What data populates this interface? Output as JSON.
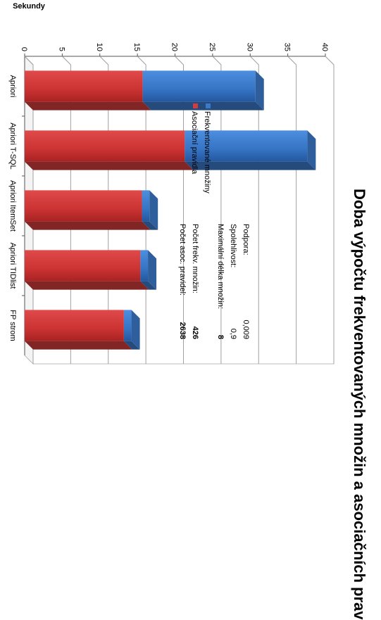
{
  "chart_data": {
    "type": "bar",
    "stacked": true,
    "orientation": "rotated-90-clockwise",
    "title": "Doba výpočtu frekventovaných množin a asociačních pravidel",
    "ylabel": "Sekundy",
    "ylim": [
      0,
      40
    ],
    "yticks": [
      "0",
      "5",
      "10",
      "15",
      "20",
      "25",
      "30",
      "35",
      "40"
    ],
    "grid": true,
    "legend_position": "top-right",
    "categories": [
      "Apriori",
      "Apriori T-SQL",
      "Apriori ItemSet",
      "Apriori TIDlist",
      "FP strom"
    ],
    "series": [
      {
        "name": "Asociační pravidla",
        "color": "#d23c3c",
        "values": [
          15.7,
          21.3,
          15.6,
          15.4,
          13.2
        ]
      },
      {
        "name": "Frekventované množiny",
        "color": "#3c78c8",
        "values": [
          15.0,
          16.3,
          1.0,
          1.0,
          1.0
        ]
      }
    ],
    "stats": [
      {
        "label": "Podpora:",
        "value": "0,009"
      },
      {
        "label": "Spolehlivost:",
        "value": "0,9"
      },
      {
        "label": "Maximální délka množin:",
        "value": "8"
      },
      {
        "label": "Počet frekv. množin:",
        "value": "426"
      },
      {
        "label": "Počet asoc. pravidel:",
        "value": "2638"
      }
    ]
  }
}
